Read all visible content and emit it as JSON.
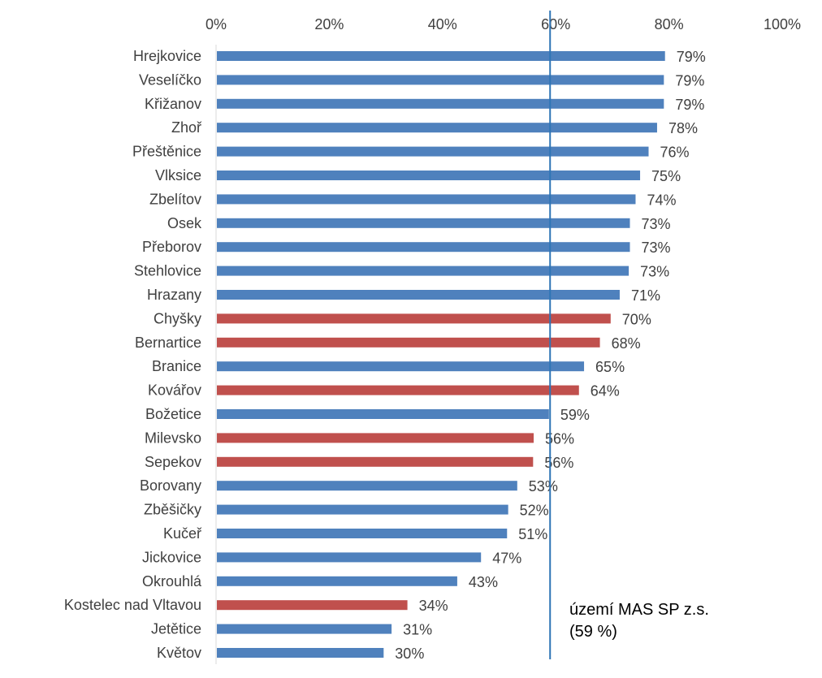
{
  "chart_data": {
    "type": "bar",
    "orientation": "horizontal",
    "title": "",
    "xlabel": "",
    "ylabel": "",
    "xlim": [
      0,
      100
    ],
    "x_ticks": [
      "0%",
      "20%",
      "40%",
      "60%",
      "80%",
      "100%"
    ],
    "x_axis_position": "top",
    "grid": false,
    "legend": null,
    "colors": {
      "default": "#4F81BD",
      "highlight": "#C0504D",
      "reference_line": "#2E75B6",
      "axis": "#D9D9D9"
    },
    "reference_line": {
      "value": 59,
      "label_lines": [
        "území MAS SP z.s.",
        "(59 %)"
      ]
    },
    "categories": [
      "Hrejkovice",
      "Veselíčko",
      "Křižanov",
      "Zhoř",
      "Přeštěnice",
      "Vlksice",
      "Zbelítov",
      "Osek",
      "Přeborov",
      "Stehlovice",
      "Hrazany",
      "Chyšky",
      "Bernartice",
      "Branice",
      "Kovářov",
      "Božetice",
      "Milevsko",
      "Sepekov",
      "Borovany",
      "Zběšičky",
      "Kučeř",
      "Jickovice",
      "Okrouhlá",
      "Kostelec nad Vltavou",
      "Jetětice",
      "Květov"
    ],
    "values": [
      79.3,
      79.1,
      79.1,
      77.9,
      76.4,
      74.9,
      74.1,
      73.1,
      73.1,
      72.9,
      71.3,
      69.7,
      67.8,
      65.0,
      64.1,
      58.8,
      56.1,
      56.0,
      53.2,
      51.6,
      51.4,
      46.8,
      42.6,
      33.8,
      31.0,
      29.6
    ],
    "value_labels": [
      "79%",
      "79%",
      "79%",
      "78%",
      "76%",
      "75%",
      "74%",
      "73%",
      "73%",
      "73%",
      "71%",
      "70%",
      "68%",
      "65%",
      "64%",
      "59%",
      "56%",
      "56%",
      "53%",
      "52%",
      "51%",
      "47%",
      "43%",
      "34%",
      "31%",
      "30%"
    ],
    "highlighted": [
      false,
      false,
      false,
      false,
      false,
      false,
      false,
      false,
      false,
      false,
      false,
      true,
      true,
      false,
      true,
      false,
      true,
      true,
      false,
      false,
      false,
      false,
      false,
      true,
      false,
      false
    ]
  }
}
